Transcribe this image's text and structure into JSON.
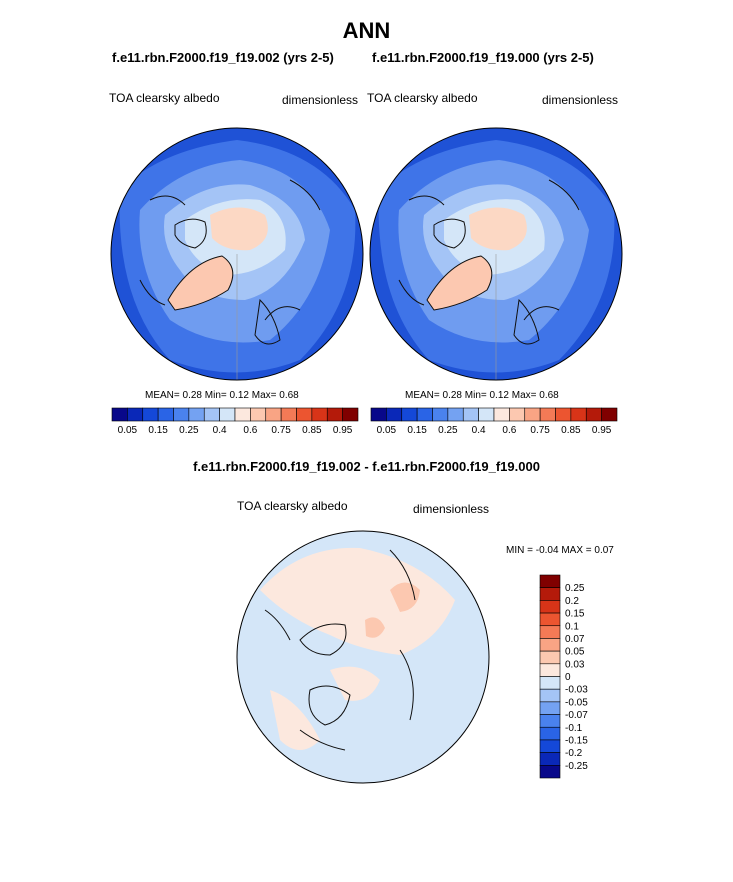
{
  "chart_data": [
    {
      "type": "heatmap",
      "projection": "north polar stereographic",
      "main_title": "ANN",
      "title": "f.e11.rbn.F2000.f19_f19.002 (yrs 2-5)",
      "left_label": "TOA clearsky albedo",
      "right_label": "dimensionless",
      "stats": {
        "mean_label": "MEAN=",
        "mean": "0.28",
        "min_label": "Min=",
        "min": "0.12",
        "max_label": "Max=",
        "max": "0.68"
      },
      "colorbar": {
        "orientation": "horizontal",
        "levels": [
          0.05,
          0.1,
          0.15,
          0.2,
          0.25,
          0.3,
          0.35,
          0.4,
          0.5,
          0.6,
          0.7,
          0.75,
          0.8,
          0.85,
          0.9,
          0.95
        ],
        "tick_labels": [
          "0.05",
          "0.15",
          "0.25",
          "0.4",
          "0.6",
          "0.75",
          "0.85",
          "0.95"
        ],
        "colors": [
          "#08088a",
          "#0a28b8",
          "#1448d8",
          "#2a64e6",
          "#4a82ee",
          "#74a2f2",
          "#a4c4f6",
          "#d4e6f8",
          "#fce8de",
          "#fcc8b0",
          "#f9a484",
          "#f47a56",
          "#ec5530",
          "#d83418",
          "#b41a0a",
          "#800000"
        ]
      }
    },
    {
      "type": "heatmap",
      "projection": "north polar stereographic",
      "title": "f.e11.rbn.F2000.f19_f19.000 (yrs 2-5)",
      "left_label": "TOA clearsky albedo",
      "right_label": "dimensionless",
      "stats": {
        "mean_label": "MEAN=",
        "mean": "0.28",
        "min_label": "Min=",
        "min": "0.12",
        "max_label": "Max=",
        "max": "0.68"
      },
      "colorbar": {
        "orientation": "horizontal",
        "levels": [
          0.05,
          0.1,
          0.15,
          0.2,
          0.25,
          0.3,
          0.35,
          0.4,
          0.5,
          0.6,
          0.7,
          0.75,
          0.8,
          0.85,
          0.9,
          0.95
        ],
        "tick_labels": [
          "0.05",
          "0.15",
          "0.25",
          "0.4",
          "0.6",
          "0.75",
          "0.85",
          "0.95"
        ],
        "colors": [
          "#08088a",
          "#0a28b8",
          "#1448d8",
          "#2a64e6",
          "#4a82ee",
          "#74a2f2",
          "#a4c4f6",
          "#d4e6f8",
          "#fce8de",
          "#fcc8b0",
          "#f9a484",
          "#f47a56",
          "#ec5530",
          "#d83418",
          "#b41a0a",
          "#800000"
        ]
      }
    },
    {
      "type": "heatmap",
      "projection": "north polar stereographic",
      "title": "f.e11.rbn.F2000.f19_f19.002 - f.e11.rbn.F2000.f19_f19.000",
      "left_label": "TOA clearsky albedo",
      "right_label": "dimensionless",
      "stats": {
        "min_label": "MIN =",
        "min": "-0.04",
        "max_label": "MAX =",
        "max": "0.07"
      },
      "colorbar": {
        "orientation": "vertical",
        "levels": [
          0.25,
          0.2,
          0.15,
          0.1,
          0.07,
          0.05,
          0.03,
          0,
          -0.03,
          -0.05,
          -0.07,
          -0.1,
          -0.15,
          -0.2,
          -0.25
        ],
        "tick_labels": [
          "0.25",
          "0.2",
          "0.15",
          "0.1",
          "0.07",
          "0.05",
          "0.03",
          "0",
          "-0.03",
          "-0.05",
          "-0.07",
          "-0.1",
          "-0.15",
          "-0.2",
          "-0.25"
        ],
        "colors": [
          "#800000",
          "#b41a0a",
          "#d83418",
          "#ec5530",
          "#f47a56",
          "#f9a484",
          "#fcc8b0",
          "#fce8de",
          "#d4e6f8",
          "#a4c4f6",
          "#74a2f2",
          "#4a82ee",
          "#2a64e6",
          "#1448d8",
          "#0a28b8",
          "#08088a"
        ]
      }
    }
  ]
}
